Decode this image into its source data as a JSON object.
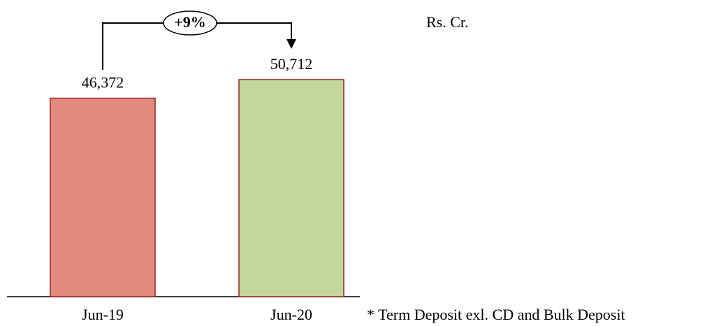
{
  "chart_data": {
    "type": "bar",
    "categories": [
      "Jun-19",
      "Jun-20"
    ],
    "values": [
      46372,
      50712
    ],
    "value_labels": [
      "46,372",
      "50,712"
    ],
    "colors": [
      "#e28a80",
      "#c4d79b"
    ],
    "unit": "Rs. Cr.",
    "annotation": "+9%",
    "footnote": "* Term Deposit exl. CD and Bulk Deposit"
  }
}
